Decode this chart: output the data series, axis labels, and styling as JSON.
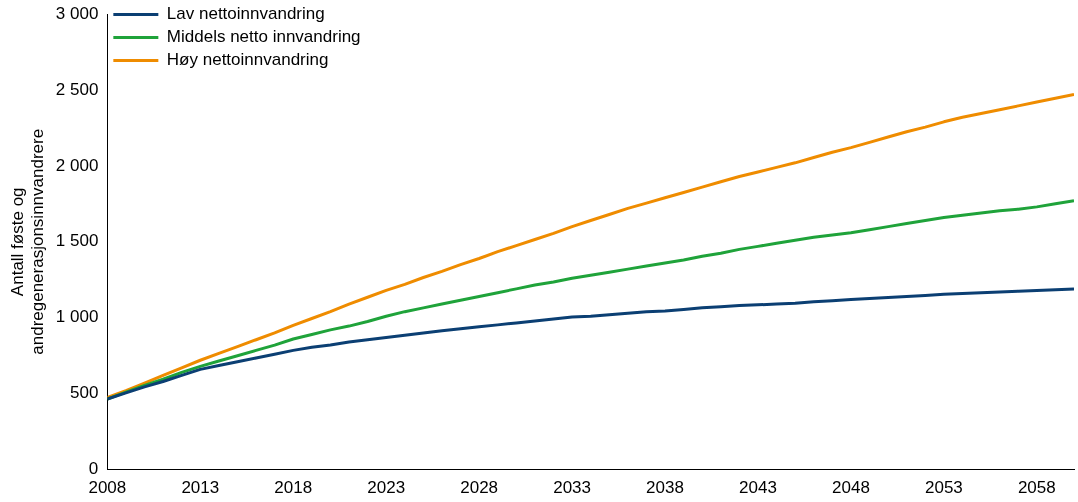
{
  "chart_data": {
    "type": "line",
    "ylabel": "Antall føste og\nandregenerasjonsinnvandrere",
    "x": [
      2008,
      2009,
      2010,
      2011,
      2012,
      2013,
      2014,
      2015,
      2016,
      2017,
      2018,
      2019,
      2020,
      2021,
      2022,
      2023,
      2024,
      2025,
      2026,
      2027,
      2028,
      2029,
      2030,
      2031,
      2032,
      2033,
      2034,
      2035,
      2036,
      2037,
      2038,
      2039,
      2040,
      2041,
      2042,
      2043,
      2044,
      2045,
      2046,
      2047,
      2048,
      2049,
      2050,
      2051,
      2052,
      2053,
      2054,
      2055,
      2056,
      2057,
      2058,
      2059,
      2060
    ],
    "series": [
      {
        "name": "Lav nettoinnvandring",
        "color": "#0b3f73",
        "values": [
          465,
          505,
          545,
          580,
          620,
          660,
          685,
          710,
          735,
          760,
          785,
          805,
          820,
          840,
          855,
          870,
          885,
          900,
          915,
          928,
          940,
          953,
          966,
          979,
          992,
          1005,
          1010,
          1020,
          1030,
          1040,
          1045,
          1055,
          1065,
          1073,
          1080,
          1085,
          1090,
          1095,
          1105,
          1112,
          1120,
          1127,
          1133,
          1140,
          1147,
          1155,
          1160,
          1165,
          1170,
          1175,
          1180,
          1185,
          1190
        ]
      },
      {
        "name": "Middels netto innvandring",
        "color": "#1fa33a",
        "values": [
          465,
          510,
          555,
          595,
          640,
          680,
          715,
          750,
          785,
          820,
          860,
          890,
          920,
          945,
          975,
          1010,
          1040,
          1065,
          1090,
          1115,
          1140,
          1165,
          1190,
          1215,
          1235,
          1260,
          1280,
          1300,
          1320,
          1340,
          1360,
          1380,
          1405,
          1425,
          1450,
          1470,
          1490,
          1510,
          1530,
          1545,
          1560,
          1580,
          1600,
          1620,
          1640,
          1660,
          1675,
          1690,
          1705,
          1715,
          1730,
          1750,
          1770
        ]
      },
      {
        "name": "Høy nettoinnvandring",
        "color": "#ef8c00",
        "values": [
          475,
          520,
          570,
          620,
          670,
          720,
          765,
          810,
          855,
          900,
          950,
          995,
          1040,
          1090,
          1135,
          1180,
          1220,
          1265,
          1305,
          1350,
          1390,
          1435,
          1475,
          1515,
          1555,
          1600,
          1640,
          1680,
          1720,
          1755,
          1790,
          1825,
          1860,
          1895,
          1930,
          1960,
          1990,
          2020,
          2055,
          2090,
          2120,
          2155,
          2190,
          2225,
          2255,
          2290,
          2320,
          2345,
          2370,
          2395,
          2420,
          2445,
          2470
        ]
      }
    ],
    "xlim": [
      2008,
      2060
    ],
    "xticks": [
      2008,
      2013,
      2018,
      2023,
      2028,
      2033,
      2038,
      2043,
      2048,
      2053,
      2058
    ],
    "ylim": [
      0,
      3000
    ],
    "yticks": [
      0,
      500,
      {
        "value": 1000,
        "label": "1 000"
      },
      {
        "value": 1500,
        "label": "1 500"
      },
      {
        "value": 2000,
        "label": "2 000"
      },
      {
        "value": 2500,
        "label": "2 500"
      },
      {
        "value": 3000,
        "label": "3 000"
      }
    ],
    "legend": "top left",
    "grid": false,
    "marker": "none",
    "line_style": "solid"
  }
}
